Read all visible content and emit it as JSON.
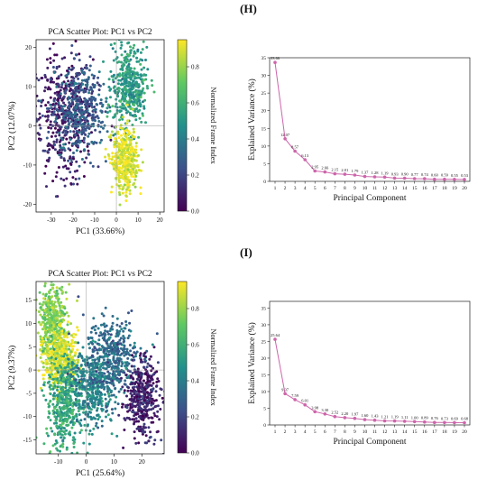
{
  "panels": [
    {
      "label": "(H)"
    },
    {
      "label": "(I)"
    }
  ],
  "chart_data": [
    {
      "type": "scatter",
      "title": "PCA Scatter Plot: PC1 vs PC2",
      "xlabel": "PC1 (33.66%)",
      "ylabel": "PC2 (12.07%)",
      "xlim": [
        -37,
        22
      ],
      "ylim": [
        -22,
        22
      ],
      "xticks": [
        -30,
        -20,
        -10,
        0,
        10,
        20
      ],
      "yticks": [
        -20,
        -10,
        0,
        10,
        20
      ],
      "colorbar": {
        "label": "Normalized Frame Index",
        "ticks": [
          0.0,
          0.2,
          0.4,
          0.6,
          0.8
        ],
        "colors": [
          "#440154",
          "#3b528b",
          "#21918c",
          "#5ec962",
          "#fde725"
        ]
      },
      "clusters": [
        {
          "cx": -25,
          "cy": 3,
          "sx": 7,
          "sy": 8,
          "t": 0.08
        },
        {
          "cx": -17,
          "cy": 4,
          "sx": 6,
          "sy": 6,
          "t": 0.28
        },
        {
          "cx": 6,
          "cy": 10,
          "sx": 4,
          "sy": 5,
          "t": 0.55
        },
        {
          "cx": 4,
          "cy": -9,
          "sx": 3,
          "sy": 4,
          "t": 0.95
        }
      ]
    },
    {
      "type": "line",
      "xlabel": "Principal Component",
      "ylabel": "Explained Variance (%)",
      "x": [
        1,
        2,
        3,
        4,
        5,
        6,
        7,
        8,
        9,
        10,
        11,
        12,
        13,
        14,
        15,
        16,
        17,
        18,
        19,
        20
      ],
      "values": [
        33.66,
        12.07,
        8.57,
        6.13,
        2.95,
        2.66,
        2.15,
        2.01,
        1.79,
        1.37,
        1.28,
        1.19,
        0.93,
        0.9,
        0.77,
        0.74,
        0.6,
        0.59,
        0.55,
        0.53
      ],
      "labels": [
        "33.66",
        "12.07",
        "8.57",
        "6.13",
        "2.95",
        "2.66",
        "2.15",
        "2.01",
        "1.79",
        "1.37",
        "1.28",
        "1.19",
        "0.93",
        "0.90",
        "0.77",
        "0.74",
        "0.60",
        "0.59",
        "0.55",
        "0.53"
      ],
      "ylim": [
        0,
        35
      ],
      "yticks": [
        0,
        5,
        10,
        15,
        20,
        25,
        30,
        35
      ],
      "color": "#cc66aa"
    },
    {
      "type": "scatter",
      "title": "PCA Scatter Plot: PC1 vs PC2",
      "xlabel": "PC1 (25.64%)",
      "ylabel": "PC2 (9.37%)",
      "xlim": [
        -18,
        28
      ],
      "ylim": [
        -18,
        19
      ],
      "xticks": [
        -10,
        0,
        10,
        20
      ],
      "yticks": [
        -15,
        -10,
        -5,
        0,
        5,
        10,
        15
      ],
      "colorbar": {
        "label": "Normalized Frame Index",
        "ticks": [
          0.0,
          0.2,
          0.4,
          0.6,
          0.8
        ],
        "colors": [
          "#440154",
          "#3b528b",
          "#21918c",
          "#5ec962",
          "#fde725"
        ]
      },
      "clusters": [
        {
          "cx": -12,
          "cy": 10,
          "sx": 2.5,
          "sy": 4,
          "t": 0.8
        },
        {
          "cx": -9,
          "cy": 2,
          "sx": 3,
          "sy": 3,
          "t": 0.95
        },
        {
          "cx": -8,
          "cy": -7,
          "sx": 3,
          "sy": 5,
          "t": 0.6
        },
        {
          "cx": 2,
          "cy": -4,
          "sx": 4,
          "sy": 4,
          "t": 0.45
        },
        {
          "cx": 9,
          "cy": 3,
          "sx": 5,
          "sy": 4,
          "t": 0.35
        },
        {
          "cx": 20,
          "cy": -6,
          "sx": 3,
          "sy": 4,
          "t": 0.1
        }
      ]
    },
    {
      "type": "line",
      "xlabel": "Principal Component",
      "ylabel": "Explained Variance (%)",
      "x": [
        1,
        2,
        3,
        4,
        5,
        6,
        7,
        8,
        9,
        10,
        11,
        12,
        13,
        14,
        15,
        16,
        17,
        18,
        19,
        20
      ],
      "values": [
        25.64,
        9.37,
        7.59,
        6.01,
        3.98,
        3.3,
        2.52,
        2.2,
        1.97,
        1.6,
        1.43,
        1.21,
        1.19,
        1.11,
        1.0,
        0.89,
        0.76,
        0.73,
        0.69,
        0.68
      ],
      "labels": [
        "25.64",
        "9.37",
        "7.59",
        "6.01",
        "3.98",
        "3.30",
        "2.52",
        "2.20",
        "1.97",
        "1.60",
        "1.43",
        "1.21",
        "1.19",
        "1.11",
        "1.00",
        "0.89",
        "0.76",
        "0.73",
        "0.69",
        "0.68"
      ],
      "ylim": [
        0,
        37
      ],
      "yticks": [
        0,
        5,
        10,
        15,
        20,
        25,
        30,
        35
      ],
      "color": "#cc66aa"
    }
  ]
}
